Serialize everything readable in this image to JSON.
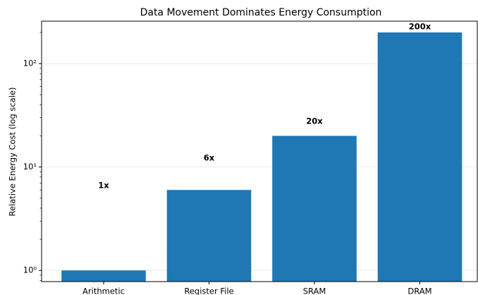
{
  "chart_data": {
    "type": "bar",
    "title": "Data Movement Dominates Energy Consumption",
    "ylabel": "Relative Energy Cost (log scale)",
    "categories": [
      "Arithmetic",
      "Register File",
      "SRAM",
      "DRAM"
    ],
    "values": [
      1,
      6,
      20,
      200
    ],
    "value_labels": [
      "1x",
      "6x",
      "20x",
      "200x"
    ],
    "color": "#1f77b4",
    "log_scale": true,
    "ylim": [
      0.78,
      257
    ],
    "yticks": [
      {
        "value": 1,
        "label": "10⁰"
      },
      {
        "value": 10,
        "label": "10¹"
      },
      {
        "value": 100,
        "label": "10²"
      }
    ],
    "yminorticks": [
      0.8,
      0.9,
      2,
      3,
      4,
      5,
      6,
      7,
      8,
      9,
      20,
      30,
      40,
      50,
      60,
      70,
      80,
      90,
      200
    ],
    "grid": true
  }
}
